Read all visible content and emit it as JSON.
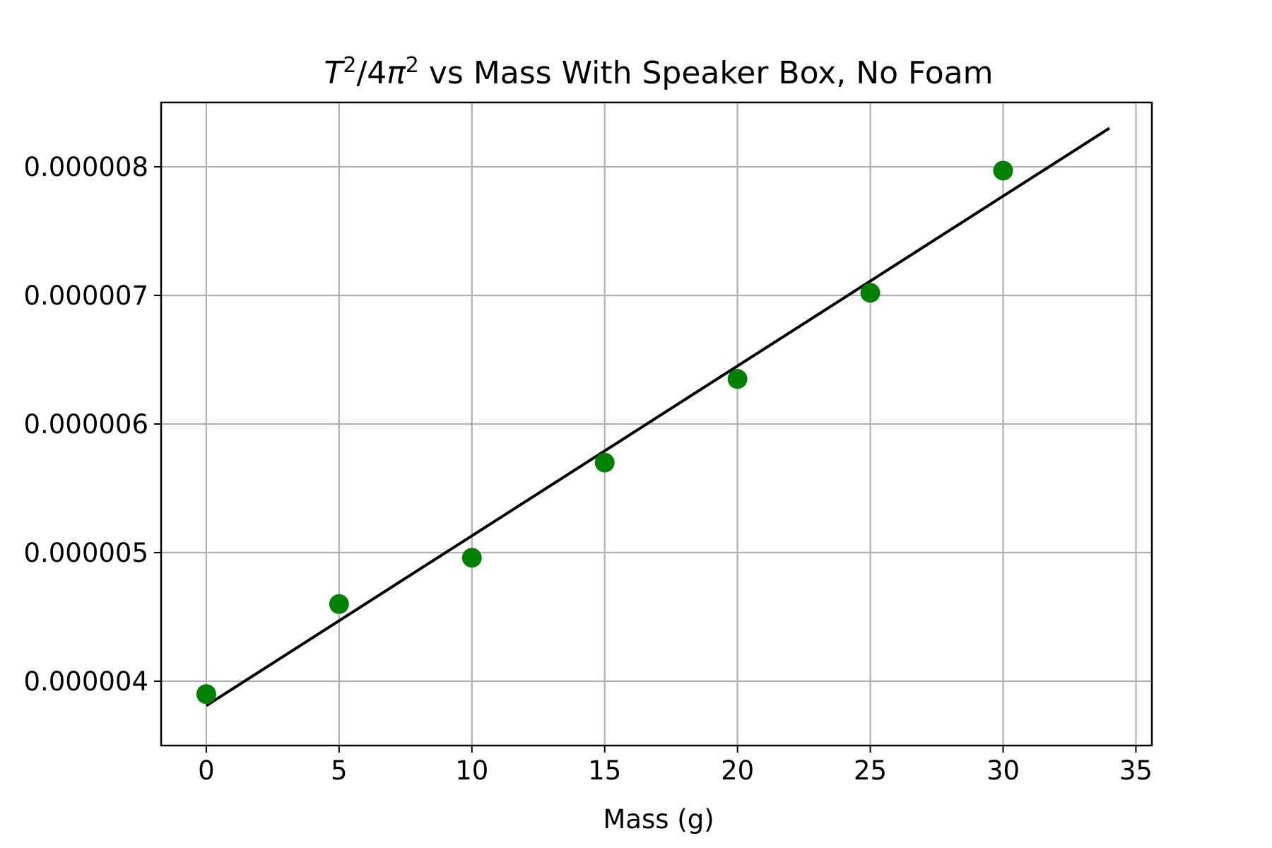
{
  "chart_data": {
    "type": "scatter",
    "title": {
      "var": "T",
      "sup1": "2",
      "mid": "/4",
      "pi": "π",
      "sup2": "2",
      "rest": " vs Mass With Speaker Box, No Foam"
    },
    "xlabel": "Mass (g)",
    "ylabel": "",
    "xlim": [
      -1.7,
      35.6
    ],
    "ylim": [
      3.5e-06,
      8.5e-06
    ],
    "x_ticks": [
      0,
      5,
      10,
      15,
      20,
      25,
      30,
      35
    ],
    "x_tick_labels": [
      "0",
      "5",
      "10",
      "15",
      "20",
      "25",
      "30",
      "35"
    ],
    "y_ticks": [
      4e-06,
      5e-06,
      6e-06,
      7e-06,
      8e-06
    ],
    "y_tick_labels": [
      "0.000004",
      "0.000005",
      "0.000006",
      "0.000007",
      "0.000008"
    ],
    "grid": true,
    "series": [
      {
        "kind": "scatter",
        "color": "#008000",
        "points": [
          {
            "x": 0,
            "y": 3.9e-06
          },
          {
            "x": 5,
            "y": 4.6e-06
          },
          {
            "x": 10,
            "y": 4.96e-06
          },
          {
            "x": 15,
            "y": 5.7e-06
          },
          {
            "x": 20,
            "y": 6.35e-06
          },
          {
            "x": 25,
            "y": 7.02e-06
          },
          {
            "x": 30,
            "y": 7.97e-06
          }
        ]
      },
      {
        "kind": "line",
        "color": "#000000",
        "points": [
          {
            "x": 0,
            "y": 3.81e-06
          },
          {
            "x": 34,
            "y": 8.3e-06
          }
        ]
      }
    ]
  }
}
